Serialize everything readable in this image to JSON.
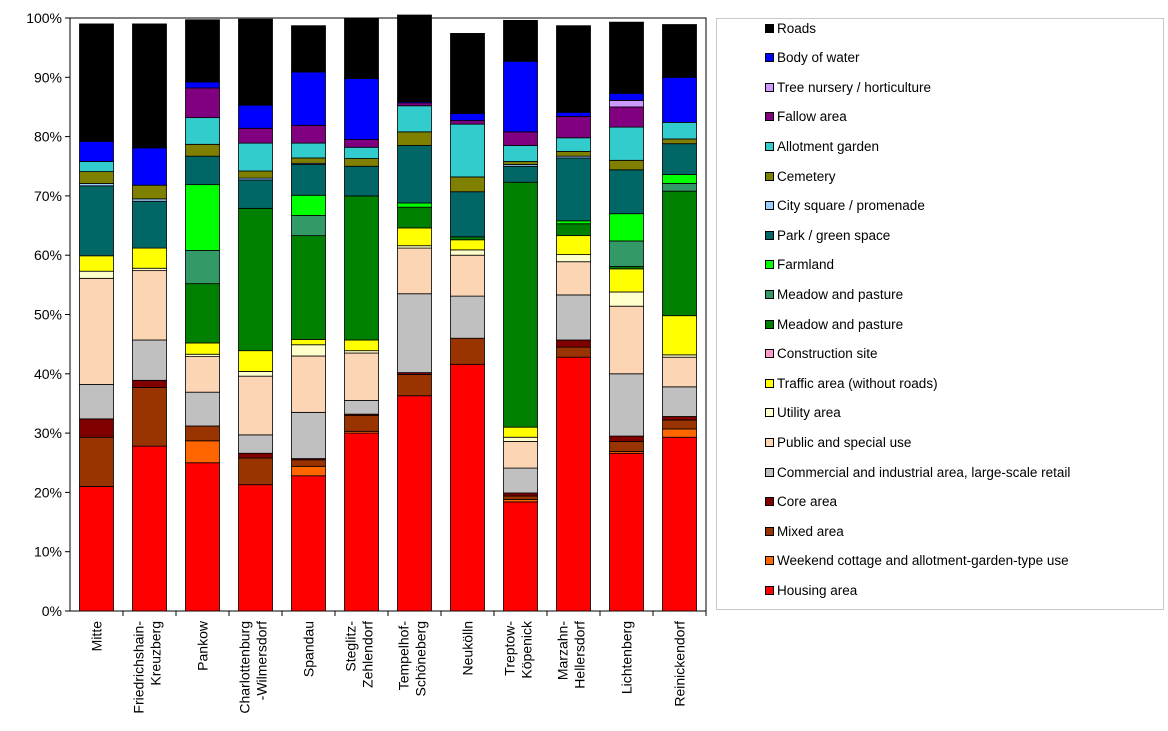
{
  "chart_data": {
    "type": "bar",
    "stacked": true,
    "title": "",
    "xlabel": "",
    "ylabel": "",
    "ylim": [
      0,
      100
    ],
    "y_unit": "%",
    "grid": false,
    "legend_position": "right",
    "y_ticks": [
      "0%",
      "10%",
      "20%",
      "30%",
      "40%",
      "50%",
      "60%",
      "70%",
      "80%",
      "90%",
      "100%"
    ],
    "categories": [
      "Mitte",
      "Friedrichshain-\nKreuzberg",
      "Pankow",
      "Charlottenburg\n-Wilmersdorf",
      "Spandau",
      "Steglitz-\nZehlendorf",
      "Tempelhof-\nSchöneberg",
      "Neukölln",
      "Treptow-\nKöpenick",
      "Marzahn-\nHellersdorf",
      "Lichtenberg",
      "Reinickendorf"
    ],
    "series": [
      {
        "name": "Housing area",
        "color": "#ff0000",
        "values": [
          21.0,
          27.8,
          25.0,
          21.3,
          22.8,
          30.0,
          36.3,
          41.6,
          18.4,
          42.8,
          26.6,
          29.3
        ]
      },
      {
        "name": "Weekend cottage and allotment-garden-type use",
        "color": "#ff6600",
        "values": [
          0.0,
          0.0,
          3.7,
          0.0,
          1.6,
          0.3,
          0.0,
          0.0,
          0.4,
          0.0,
          0.3,
          1.4
        ]
      },
      {
        "name": "Mixed area",
        "color": "#993300",
        "values": [
          8.3,
          9.9,
          2.5,
          4.5,
          1.1,
          2.7,
          3.6,
          4.4,
          0.6,
          1.7,
          1.7,
          1.5
        ]
      },
      {
        "name": "Core area",
        "color": "#800000",
        "values": [
          3.1,
          1.2,
          0.0,
          0.8,
          0.2,
          0.2,
          0.3,
          0.0,
          0.5,
          1.2,
          0.9,
          0.6
        ]
      },
      {
        "name": "Commercial and industrial area, large-scale retail",
        "color": "#c0c0c0",
        "values": [
          5.8,
          6.8,
          5.7,
          3.1,
          7.8,
          2.3,
          13.3,
          7.1,
          4.2,
          7.6,
          10.5,
          5.0
        ]
      },
      {
        "name": "Public and special use",
        "color": "#fcd5b4",
        "values": [
          17.9,
          11.7,
          6.0,
          9.9,
          9.5,
          8.0,
          7.7,
          6.9,
          4.5,
          5.6,
          11.4,
          5.0
        ]
      },
      {
        "name": "Utility area",
        "color": "#ffffcc",
        "values": [
          1.2,
          0.4,
          0.4,
          0.8,
          1.9,
          0.4,
          0.4,
          0.9,
          0.7,
          1.2,
          2.4,
          0.4
        ]
      },
      {
        "name": "Traffic area (without roads)",
        "color": "#ffff00",
        "values": [
          2.6,
          3.4,
          1.9,
          3.5,
          0.9,
          1.8,
          3.0,
          1.7,
          1.7,
          3.2,
          3.9,
          6.6
        ]
      },
      {
        "name": "Construction site",
        "color": "#ff99cc",
        "values": [
          0.0,
          0.0,
          0.0,
          0.0,
          0.0,
          0.0,
          0.0,
          0.0,
          0.0,
          0.0,
          0.0,
          0.0
        ]
      },
      {
        "name": "Meadow and pasture",
        "color": "#008000",
        "values": [
          0.0,
          0.0,
          10.0,
          24.0,
          17.5,
          24.3,
          3.5,
          0.5,
          41.3,
          2.0,
          0.4,
          21.0
        ]
      },
      {
        "name": "Meadow and pasture",
        "color": "#339966",
        "values": [
          0.0,
          0.0,
          5.6,
          0.0,
          3.4,
          0.0,
          0.0,
          0.0,
          0.0,
          0.0,
          4.3,
          1.3
        ]
      },
      {
        "name": "Farmland",
        "color": "#00ff00",
        "values": [
          0.0,
          0.0,
          11.1,
          0.0,
          3.4,
          0.0,
          0.7,
          0.0,
          0.0,
          0.5,
          4.6,
          1.5
        ]
      },
      {
        "name": "Park / green space",
        "color": "#006666",
        "values": [
          11.8,
          7.9,
          4.8,
          4.8,
          5.2,
          5.0,
          9.7,
          7.6,
          2.7,
          10.6,
          7.4,
          5.2
        ]
      },
      {
        "name": "City square / promenade",
        "color": "#99ccff",
        "values": [
          0.4,
          0.4,
          0.0,
          0.3,
          0.2,
          0.0,
          0.0,
          0.0,
          0.3,
          0.3,
          0.0,
          0.0
        ]
      },
      {
        "name": "Cemetery",
        "color": "#808000",
        "values": [
          2.0,
          2.3,
          2.0,
          1.2,
          0.9,
          1.3,
          2.3,
          2.5,
          0.5,
          0.8,
          1.6,
          0.8
        ]
      },
      {
        "name": "Allotment garden",
        "color": "#33cccc",
        "values": [
          1.7,
          0.0,
          4.5,
          4.7,
          2.5,
          1.9,
          4.4,
          8.9,
          2.7,
          2.3,
          5.6,
          2.8
        ]
      },
      {
        "name": "Fallow area",
        "color": "#800080",
        "values": [
          0.0,
          0.0,
          5.0,
          2.5,
          3.0,
          1.3,
          0.5,
          0.6,
          2.3,
          3.6,
          3.4,
          0.0
        ]
      },
      {
        "name": "Tree nursery / horticulture",
        "color": "#cc99ff",
        "values": [
          0.0,
          0.0,
          0.0,
          0.0,
          0.0,
          0.0,
          0.0,
          0.0,
          0.0,
          0.0,
          1.1,
          0.0
        ]
      },
      {
        "name": "Body of water",
        "color": "#0000ff",
        "values": [
          3.4,
          6.3,
          1.0,
          3.9,
          9.0,
          10.3,
          0.2,
          1.2,
          11.9,
          0.7,
          1.2,
          7.6
        ]
      },
      {
        "name": "Roads",
        "color": "#000000",
        "values": [
          19.8,
          20.9,
          10.5,
          14.5,
          7.8,
          10.2,
          14.6,
          13.5,
          6.9,
          14.6,
          12.0,
          8.9
        ]
      }
    ]
  }
}
